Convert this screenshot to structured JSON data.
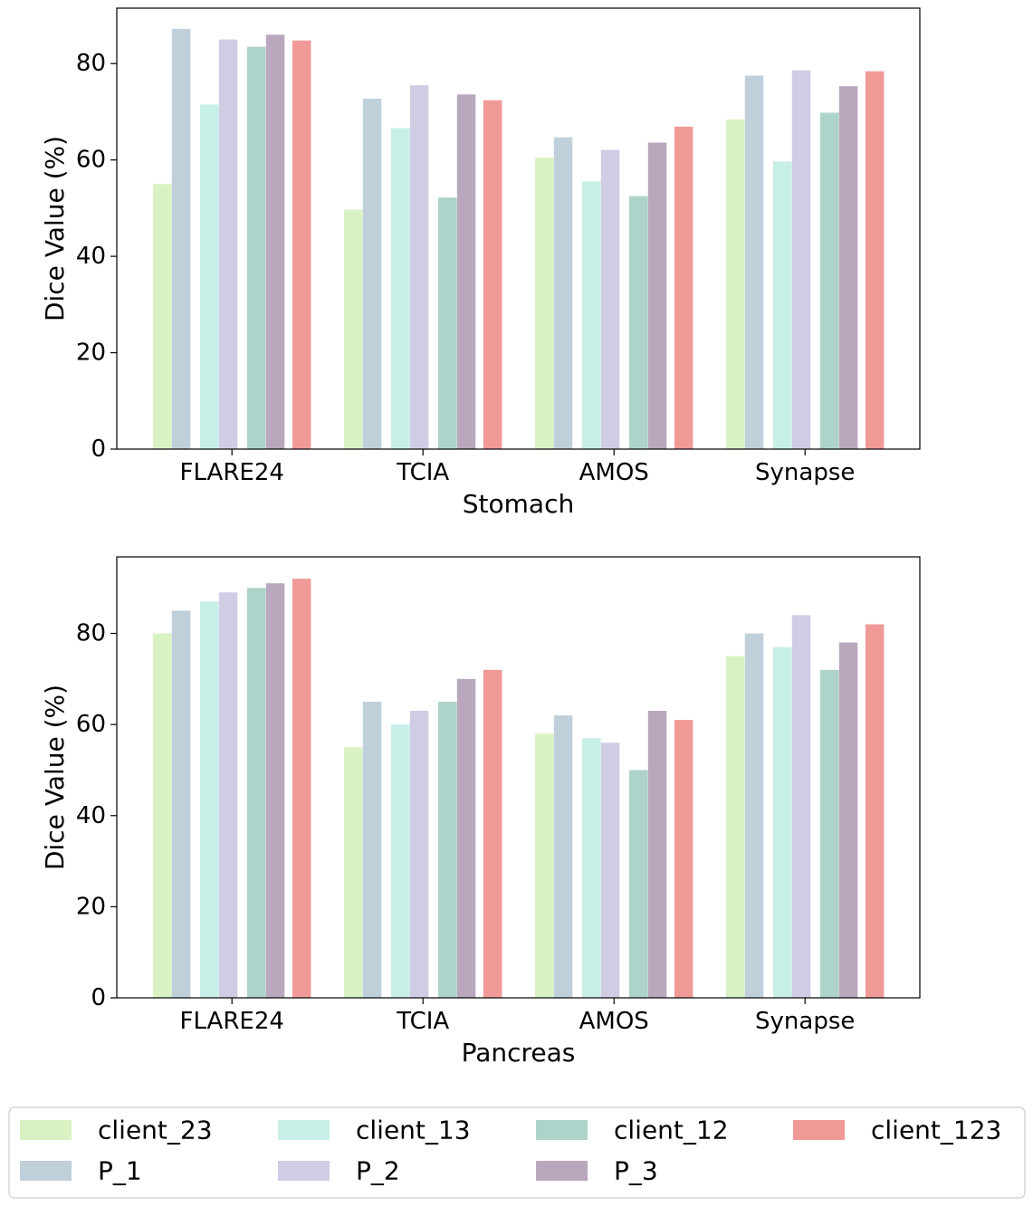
{
  "chart_data": [
    {
      "type": "bar",
      "categories": [
        "FLARE24",
        "TCIA",
        "AMOS",
        "Synapse"
      ],
      "xlabel": "Stomach",
      "ylabel": "Dice Value (%)",
      "ylim": [
        0,
        91.5
      ],
      "yticks": [
        0,
        20,
        40,
        60,
        80
      ],
      "grid": false,
      "series": [
        {
          "name": "client_23",
          "values": [
            55.0,
            49.7,
            60.5,
            68.4
          ]
        },
        {
          "name": "P_1",
          "values": [
            87.2,
            72.7,
            64.7,
            77.5
          ]
        },
        {
          "name": "client_13",
          "values": [
            71.5,
            66.6,
            55.5,
            59.7
          ]
        },
        {
          "name": "P_2",
          "values": [
            85.0,
            75.5,
            62.1,
            78.6
          ]
        },
        {
          "name": "client_12",
          "values": [
            83.5,
            52.2,
            52.5,
            69.8
          ]
        },
        {
          "name": "P_3",
          "values": [
            86.0,
            73.6,
            63.6,
            75.3
          ]
        },
        {
          "name": "client_123",
          "values": [
            84.8,
            72.4,
            66.9,
            78.4
          ]
        }
      ]
    },
    {
      "type": "bar",
      "categories": [
        "FLARE24",
        "TCIA",
        "AMOS",
        "Synapse"
      ],
      "xlabel": "Pancreas",
      "ylabel": "Dice Value (%)",
      "ylim": [
        0,
        96.8
      ],
      "yticks": [
        0,
        20,
        40,
        60,
        80
      ],
      "grid": false,
      "series": [
        {
          "name": "client_23",
          "values": [
            80,
            55,
            58,
            75
          ]
        },
        {
          "name": "P_1",
          "values": [
            85,
            65,
            62,
            80
          ]
        },
        {
          "name": "client_13",
          "values": [
            87,
            60,
            57,
            77
          ]
        },
        {
          "name": "P_2",
          "values": [
            89,
            63,
            56,
            84
          ]
        },
        {
          "name": "client_12",
          "values": [
            90,
            65,
            50,
            72
          ]
        },
        {
          "name": "P_3",
          "values": [
            91,
            70,
            63,
            78
          ]
        },
        {
          "name": "client_123",
          "values": [
            92,
            72,
            61,
            82
          ]
        }
      ]
    }
  ],
  "legend": {
    "position": "bottom",
    "order": [
      "client_23",
      "P_1",
      "client_13",
      "P_2",
      "client_12",
      "P_3",
      "client_123"
    ]
  },
  "colors": {
    "client_23": "#d9f2c4",
    "P_1": "#bfd0db",
    "client_13": "#c8efe7",
    "P_2": "#d0cce4",
    "client_12": "#aed3cb",
    "P_3": "#b9a7bd",
    "client_123": "#f09a98"
  }
}
